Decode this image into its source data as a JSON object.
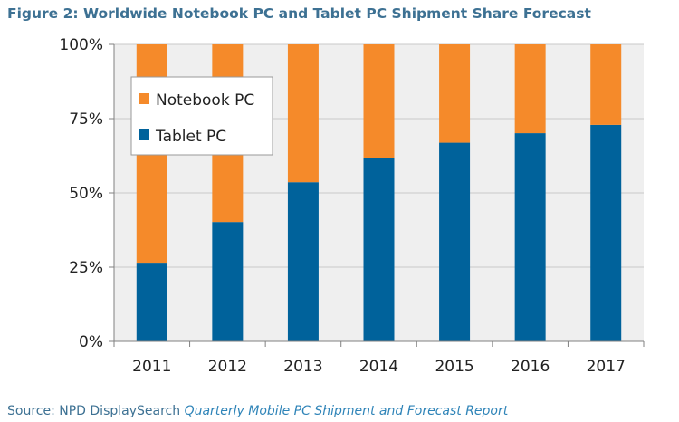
{
  "title": "Figure 2: Worldwide Notebook PC and Tablet PC Shipment Share Forecast",
  "source": {
    "prefix": "Source: NPD DisplaySearch",
    "report": "Quarterly Mobile PC Shipment and Forecast Report"
  },
  "colors": {
    "notebook": "#f58a2a",
    "tablet": "#00629b",
    "plot_background": "#efefef",
    "gridline": "#c9c9c9",
    "title": "#3d7193"
  },
  "chart_data": {
    "type": "bar",
    "stacked": true,
    "categories": [
      "2011",
      "2012",
      "2013",
      "2014",
      "2015",
      "2016",
      "2017"
    ],
    "series": [
      {
        "name": "Tablet PC",
        "color": "#00629b",
        "values": [
          26.5,
          40.2,
          53.6,
          61.8,
          66.9,
          70.1,
          72.9
        ]
      },
      {
        "name": "Notebook PC",
        "color": "#f58a2a",
        "values": [
          73.5,
          59.8,
          46.4,
          38.2,
          33.1,
          29.9,
          27.1
        ]
      }
    ],
    "y_ticks": [
      "0%",
      "25%",
      "50%",
      "75%",
      "100%"
    ],
    "ylim": [
      0,
      100
    ],
    "grid": true,
    "legend": {
      "placement": "top-left",
      "entries": [
        "Notebook PC",
        "Tablet PC"
      ]
    }
  }
}
